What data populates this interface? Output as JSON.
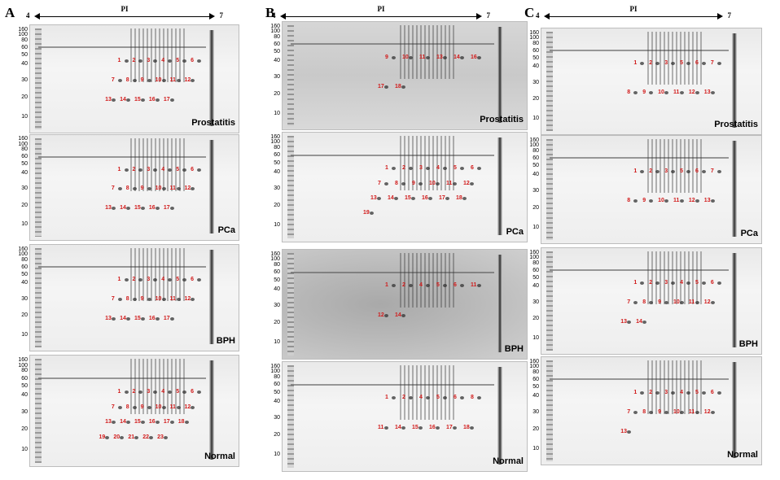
{
  "columns": [
    {
      "letter": "A",
      "pi_label": "PI",
      "pi_start": "4",
      "pi_end": "7",
      "panels": [
        {
          "condition": "Prostatitis",
          "ticks": [
            "160",
            "100",
            "80",
            "60",
            "50",
            "40",
            "30",
            "20",
            "10"
          ],
          "spots": [
            "1",
            "2",
            "3",
            "4",
            "5",
            "6",
            "7",
            "8",
            "9",
            "10",
            "11",
            "12",
            "13",
            "14",
            "15",
            "16",
            "17"
          ]
        },
        {
          "condition": "PCa",
          "ticks": [
            "160",
            "100",
            "80",
            "60",
            "50",
            "40",
            "30",
            "20",
            "10"
          ],
          "spots": [
            "1",
            "2",
            "3",
            "4",
            "5",
            "6",
            "7",
            "8",
            "9",
            "10",
            "11",
            "12",
            "13",
            "14",
            "15",
            "16",
            "17"
          ]
        },
        {
          "condition": "BPH",
          "ticks": [
            "160",
            "100",
            "80",
            "60",
            "50",
            "40",
            "30",
            "20",
            "10"
          ],
          "spots": [
            "1",
            "2",
            "3",
            "4",
            "5",
            "6",
            "7",
            "8",
            "9",
            "10",
            "11",
            "12",
            "13",
            "14",
            "15",
            "16",
            "17"
          ]
        },
        {
          "condition": "Normal",
          "ticks": [
            "160",
            "100",
            "80",
            "60",
            "50",
            "40",
            "30",
            "20",
            "10"
          ],
          "spots": [
            "1",
            "2",
            "3",
            "4",
            "5",
            "6",
            "7",
            "8",
            "9",
            "10",
            "11",
            "12",
            "13",
            "14",
            "15",
            "16",
            "17",
            "18",
            "19",
            "20",
            "21",
            "22",
            "23"
          ]
        }
      ]
    },
    {
      "letter": "B",
      "pi_label": "PI",
      "pi_start": "4",
      "pi_end": "7",
      "panels": [
        {
          "condition": "Prostatitis",
          "ticks": [
            "160",
            "100",
            "80",
            "60",
            "50",
            "40",
            "30",
            "20",
            "10"
          ],
          "spots": [
            "9",
            "10",
            "11",
            "13",
            "14",
            "16",
            "17",
            "18"
          ]
        },
        {
          "condition": "PCa",
          "ticks": [
            "160",
            "100",
            "80",
            "60",
            "50",
            "40",
            "30",
            "20",
            "10"
          ],
          "spots": [
            "1",
            "2",
            "3",
            "4",
            "5",
            "6",
            "7",
            "8",
            "9",
            "10",
            "11",
            "12",
            "13",
            "14",
            "15",
            "16",
            "17",
            "18",
            "19"
          ]
        },
        {
          "condition": "BPH",
          "ticks": [
            "160",
            "100",
            "80",
            "60",
            "50",
            "40",
            "30",
            "20",
            "10"
          ],
          "spots": [
            "1",
            "2",
            "4",
            "5",
            "6",
            "11",
            "12",
            "14"
          ]
        },
        {
          "condition": "Normal",
          "ticks": [
            "160",
            "100",
            "80",
            "60",
            "50",
            "40",
            "30",
            "20",
            "10"
          ],
          "spots": [
            "1",
            "2",
            "4",
            "5",
            "6",
            "8",
            "11",
            "14",
            "15",
            "16",
            "17",
            "18"
          ]
        }
      ]
    },
    {
      "letter": "C",
      "pi_label": "PI",
      "pi_start": "4",
      "pi_end": "7",
      "panels": [
        {
          "condition": "Prostatitis",
          "ticks": [
            "160",
            "100",
            "80",
            "60",
            "50",
            "40",
            "30",
            "20",
            "10"
          ],
          "spots": [
            "1",
            "2",
            "3",
            "5",
            "6",
            "7",
            "8",
            "9",
            "10",
            "11",
            "12",
            "13"
          ]
        },
        {
          "condition": "PCa",
          "ticks": [
            "160",
            "100",
            "80",
            "60",
            "50",
            "40",
            "30",
            "20",
            "10"
          ],
          "spots": [
            "1",
            "2",
            "3",
            "5",
            "6",
            "7",
            "8",
            "9",
            "10",
            "11",
            "12",
            "13"
          ]
        },
        {
          "condition": "BPH",
          "ticks": [
            "160",
            "100",
            "80",
            "60",
            "50",
            "40",
            "30",
            "20",
            "10"
          ],
          "spots": [
            "1",
            "2",
            "3",
            "4",
            "5",
            "6",
            "7",
            "8",
            "9",
            "10",
            "11",
            "12",
            "13",
            "14"
          ]
        },
        {
          "condition": "Normal",
          "ticks": [
            "160",
            "100",
            "80",
            "60",
            "50",
            "40",
            "30",
            "20",
            "10"
          ],
          "spots": [
            "1",
            "2",
            "3",
            "4",
            "5",
            "6",
            "7",
            "8",
            "9",
            "10",
            "11",
            "12",
            "13"
          ]
        }
      ]
    }
  ]
}
